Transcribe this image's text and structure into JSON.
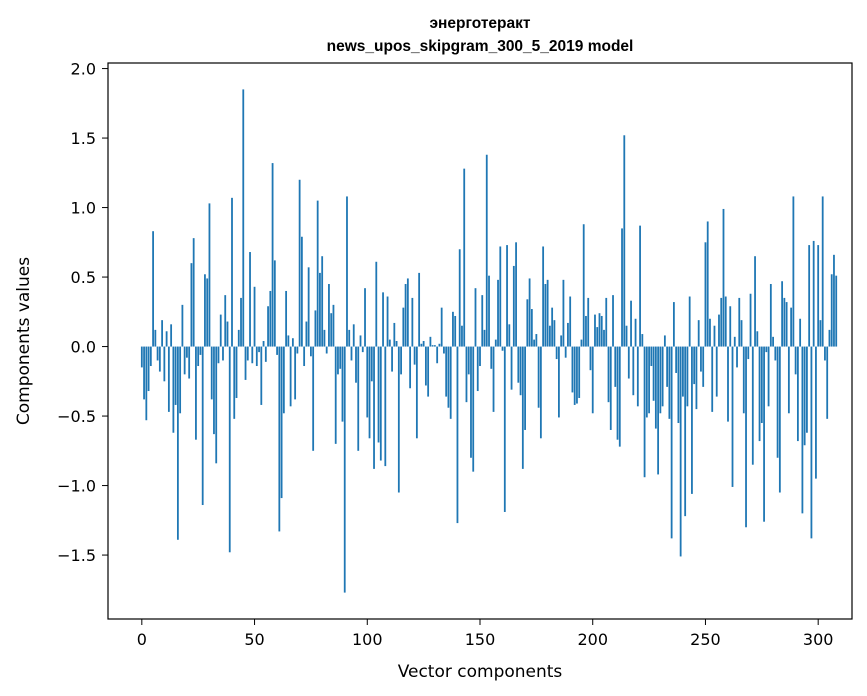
{
  "chart_data": {
    "type": "bar",
    "title_line1": "энерготеракт",
    "title_line2": "news_upos_skipgram_300_5_2019 model",
    "xlabel": "Vector components",
    "ylabel": "Components values",
    "xlim": [
      -15,
      315
    ],
    "ylim": [
      -1.96,
      2.04
    ],
    "xticks": [
      0,
      50,
      100,
      150,
      200,
      250,
      300
    ],
    "yticks": [
      -1.5,
      -1.0,
      -0.5,
      0.0,
      0.5,
      1.0,
      1.5,
      2.0
    ],
    "ytick_labels": [
      "−1.5",
      "−1.0",
      "−0.5",
      "0.0",
      "0.5",
      "1.0",
      "1.5",
      "2.0"
    ],
    "bar_color": "#1f77b4",
    "values": [
      -0.15,
      -0.38,
      -0.53,
      -0.32,
      -0.14,
      0.83,
      0.12,
      -0.1,
      -0.18,
      0.19,
      -0.25,
      0.11,
      -0.47,
      0.16,
      -0.62,
      -0.42,
      -1.39,
      -0.48,
      0.3,
      -0.2,
      -0.08,
      -0.23,
      0.6,
      0.78,
      -0.67,
      -0.14,
      -0.06,
      -1.14,
      0.52,
      0.49,
      1.03,
      -0.38,
      -0.63,
      -0.84,
      -0.12,
      0.23,
      -0.1,
      0.37,
      0.18,
      -1.48,
      1.07,
      -0.52,
      -0.37,
      0.12,
      0.35,
      1.85,
      -0.24,
      -0.1,
      0.68,
      -0.12,
      0.43,
      -0.14,
      -0.04,
      -0.42,
      0.04,
      -0.11,
      0.29,
      0.4,
      1.32,
      0.62,
      -0.06,
      -1.33,
      -1.09,
      -0.48,
      0.4,
      0.08,
      -0.43,
      0.06,
      -0.38,
      -0.05,
      1.2,
      0.79,
      -0.14,
      0.18,
      0.57,
      -0.07,
      -0.75,
      0.26,
      1.05,
      0.53,
      0.65,
      0.12,
      -0.05,
      0.45,
      0.24,
      0.3,
      -0.7,
      -0.2,
      -0.16,
      -0.54,
      -1.77,
      1.08,
      0.12,
      -0.1,
      0.16,
      -0.26,
      -0.75,
      0.08,
      -0.04,
      0.42,
      -0.51,
      -0.66,
      -0.25,
      -0.88,
      0.61,
      -0.69,
      -0.82,
      0.39,
      -0.86,
      0.36,
      0.05,
      -0.18,
      0.17,
      0.04,
      -1.05,
      -0.2,
      0.28,
      0.45,
      0.49,
      -0.3,
      0.35,
      -0.13,
      -0.66,
      0.53,
      0.02,
      0.04,
      -0.28,
      -0.36,
      0.07,
      0.01,
      0.01,
      -0.12,
      0.02,
      0.28,
      -0.05,
      -0.36,
      -0.44,
      -0.52,
      0.25,
      0.22,
      -1.27,
      0.7,
      0.15,
      1.28,
      -0.4,
      -0.2,
      -0.8,
      -0.9,
      0.42,
      -0.32,
      -0.14,
      0.37,
      0.12,
      1.38,
      0.51,
      -0.16,
      -0.47,
      0.05,
      0.48,
      0.72,
      -0.03,
      -1.19,
      0.73,
      0.16,
      -0.31,
      0.58,
      0.75,
      -0.26,
      -0.35,
      -0.88,
      -0.6,
      0.34,
      0.49,
      0.27,
      0.05,
      0.09,
      -0.44,
      -0.66,
      0.72,
      0.45,
      0.48,
      0.15,
      0.28,
      0.19,
      -0.09,
      -0.51,
      0.08,
      0.48,
      -0.08,
      0.17,
      0.36,
      -0.33,
      -0.42,
      -0.41,
      -0.37,
      0.05,
      0.88,
      0.22,
      0.35,
      -0.17,
      -0.48,
      0.23,
      0.14,
      0.24,
      0.22,
      0.12,
      0.35,
      -0.4,
      -0.6,
      0.37,
      -0.29,
      -0.67,
      -0.72,
      0.85,
      1.52,
      0.15,
      -0.23,
      0.33,
      -0.35,
      0.2,
      -0.43,
      0.87,
      0.09,
      -0.94,
      -0.51,
      -0.48,
      -0.14,
      -0.39,
      -0.59,
      -0.92,
      -0.48,
      -0.43,
      0.08,
      -0.29,
      -0.52,
      -1.38,
      0.32,
      -0.19,
      -0.55,
      -1.51,
      -0.36,
      -1.22,
      -0.43,
      0.36,
      -1.06,
      -0.27,
      -0.45,
      0.19,
      -0.18,
      -0.29,
      0.75,
      0.9,
      0.2,
      -0.47,
      0.15,
      -0.36,
      0.23,
      0.35,
      0.99,
      0.36,
      -0.54,
      0.29,
      -1.01,
      0.07,
      -0.15,
      0.35,
      0.19,
      -0.48,
      -1.3,
      -0.09,
      0.38,
      -0.85,
      0.65,
      0.11,
      -0.68,
      -0.55,
      -1.26,
      -0.04,
      -0.43,
      0.45,
      0.07,
      -0.1,
      -0.8,
      -1.05,
      0.47,
      0.35,
      0.32,
      -0.48,
      0.28,
      1.08,
      -0.2,
      -0.68,
      0.2,
      -1.2,
      -0.71,
      -0.62,
      0.73,
      -1.38,
      0.76,
      -0.95,
      0.73,
      0.19,
      1.08,
      -0.1,
      -0.52,
      0.12,
      0.52,
      0.66,
      0.51
    ]
  }
}
